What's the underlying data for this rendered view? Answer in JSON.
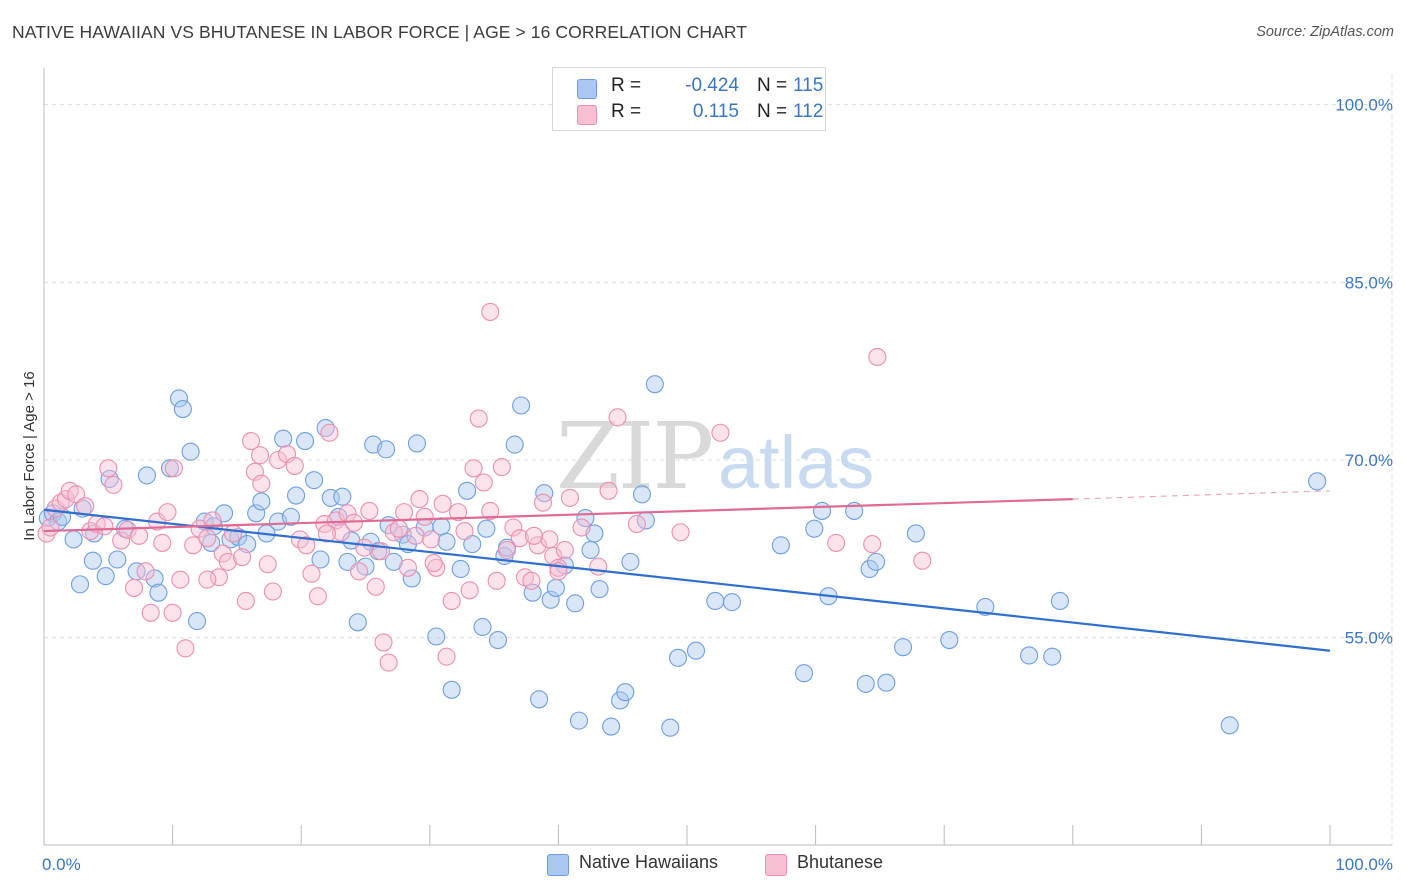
{
  "header": {
    "title": "NATIVE HAWAIIAN VS BHUTANESE IN LABOR FORCE | AGE > 16 CORRELATION CHART",
    "source": "Source: ZipAtlas.com"
  },
  "watermark": {
    "zip": "ZIP",
    "atlas": "atlas"
  },
  "legend": {
    "rows": [
      {
        "r_label": "R =",
        "r_value": "-0.424",
        "n_label": "N =",
        "n_value": "115"
      },
      {
        "r_label": "R =",
        "r_value": "0.115",
        "n_label": "N =",
        "n_value": "112"
      }
    ],
    "bottom": [
      "Native Hawaiians",
      "Bhutanese"
    ]
  },
  "chart_data": {
    "type": "scatter",
    "title": "NATIVE HAWAIIAN VS BHUTANESE IN LABOR FORCE | AGE > 16 CORRELATION CHART",
    "xlabel": "",
    "ylabel": "In Labor Force | Age > 16",
    "xlim": [
      0,
      100
    ],
    "ylim": [
      37.5,
      102.5
    ],
    "x_tick_labels": [
      "0.0%",
      "100.0%"
    ],
    "y_ticks": [
      55,
      70,
      85,
      100
    ],
    "y_tick_labels": [
      "55.0%",
      "70.0%",
      "85.0%",
      "100.0%"
    ],
    "grid": true,
    "legend_position": "top-center",
    "series": [
      {
        "name": "Native Hawaiians",
        "color": "#6f9fe0",
        "fill": "#a9c7f0",
        "trend": {
          "x": [
            0,
            100
          ],
          "y": [
            65.8,
            53.9
          ]
        },
        "trend_color": "#2f6fce",
        "points": [
          [
            0.3,
            65.1
          ],
          [
            0.7,
            65.5
          ],
          [
            1.1,
            64.8
          ],
          [
            1.4,
            65.2
          ],
          [
            2.3,
            63.3
          ],
          [
            2.8,
            59.5
          ],
          [
            3.8,
            61.5
          ],
          [
            3.9,
            63.8
          ],
          [
            4.8,
            60.2
          ],
          [
            5.1,
            68.4
          ],
          [
            5.7,
            61.6
          ],
          [
            6.3,
            64.2
          ],
          [
            7.2,
            60.6
          ],
          [
            8.0,
            68.7
          ],
          [
            8.6,
            60.0
          ],
          [
            8.9,
            58.8
          ],
          [
            9.8,
            69.3
          ],
          [
            10.5,
            75.2
          ],
          [
            10.8,
            74.3
          ],
          [
            11.4,
            70.7
          ],
          [
            11.9,
            56.4
          ],
          [
            12.5,
            64.8
          ],
          [
            13.0,
            63.0
          ],
          [
            13.2,
            64.4
          ],
          [
            14.0,
            65.5
          ],
          [
            14.5,
            63.3
          ],
          [
            15.1,
            63.5
          ],
          [
            15.8,
            62.9
          ],
          [
            16.5,
            65.5
          ],
          [
            16.9,
            66.5
          ],
          [
            17.3,
            63.8
          ],
          [
            18.2,
            64.8
          ],
          [
            18.6,
            71.8
          ],
          [
            19.2,
            65.2
          ],
          [
            19.6,
            67.0
          ],
          [
            20.3,
            71.6
          ],
          [
            21.0,
            68.3
          ],
          [
            21.5,
            61.6
          ],
          [
            21.9,
            72.7
          ],
          [
            22.3,
            66.8
          ],
          [
            22.9,
            65.2
          ],
          [
            23.2,
            66.9
          ],
          [
            23.6,
            61.4
          ],
          [
            23.9,
            63.2
          ],
          [
            24.4,
            56.3
          ],
          [
            25.0,
            61.0
          ],
          [
            25.4,
            63.1
          ],
          [
            25.6,
            71.3
          ],
          [
            26.0,
            62.3
          ],
          [
            26.6,
            70.9
          ],
          [
            27.2,
            61.4
          ],
          [
            27.9,
            63.7
          ],
          [
            28.3,
            62.9
          ],
          [
            28.6,
            60.0
          ],
          [
            29.0,
            71.4
          ],
          [
            29.6,
            64.3
          ],
          [
            30.5,
            55.1
          ],
          [
            30.9,
            64.4
          ],
          [
            31.3,
            63.1
          ],
          [
            31.7,
            50.6
          ],
          [
            32.4,
            60.8
          ],
          [
            32.9,
            67.4
          ],
          [
            33.3,
            62.9
          ],
          [
            34.1,
            55.9
          ],
          [
            34.4,
            64.2
          ],
          [
            35.3,
            54.8
          ],
          [
            35.8,
            61.9
          ],
          [
            36.6,
            71.3
          ],
          [
            37.1,
            74.6
          ],
          [
            38.0,
            58.8
          ],
          [
            38.5,
            49.8
          ],
          [
            38.9,
            67.2
          ],
          [
            39.4,
            58.2
          ],
          [
            39.8,
            59.2
          ],
          [
            40.5,
            61.1
          ],
          [
            41.3,
            57.9
          ],
          [
            41.6,
            48.0
          ],
          [
            42.1,
            65.1
          ],
          [
            42.5,
            62.4
          ],
          [
            42.8,
            63.8
          ],
          [
            43.2,
            59.1
          ],
          [
            44.1,
            47.5
          ],
          [
            44.8,
            49.7
          ],
          [
            45.2,
            50.4
          ],
          [
            45.6,
            61.4
          ],
          [
            46.5,
            67.1
          ],
          [
            46.8,
            64.9
          ],
          [
            47.5,
            76.4
          ],
          [
            48.7,
            47.4
          ],
          [
            49.3,
            53.3
          ],
          [
            50.7,
            53.9
          ],
          [
            52.2,
            58.1
          ],
          [
            53.5,
            58.0
          ],
          [
            57.3,
            62.8
          ],
          [
            59.1,
            52.0
          ],
          [
            59.9,
            64.2
          ],
          [
            60.5,
            65.7
          ],
          [
            61.0,
            58.5
          ],
          [
            63.0,
            65.7
          ],
          [
            63.9,
            51.1
          ],
          [
            64.2,
            60.8
          ],
          [
            64.7,
            61.4
          ],
          [
            65.5,
            51.2
          ],
          [
            66.8,
            54.2
          ],
          [
            67.8,
            63.8
          ],
          [
            70.4,
            54.8
          ],
          [
            73.2,
            57.6
          ],
          [
            76.6,
            53.5
          ],
          [
            78.4,
            53.4
          ],
          [
            79.0,
            58.1
          ],
          [
            92.2,
            47.6
          ],
          [
            99.0,
            68.2
          ],
          [
            3.0,
            65.9
          ],
          [
            26.8,
            64.5
          ],
          [
            36.0,
            62.6
          ]
        ]
      },
      {
        "name": "Bhutanese",
        "color": "#ec8fb0",
        "fill": "#f6bfd2",
        "trend": {
          "x": [
            0,
            80
          ],
          "y": [
            64.0,
            66.7
          ]
        },
        "trend_dashed": {
          "x": [
            80,
            100
          ],
          "y": [
            66.7,
            67.4
          ]
        },
        "trend_color": "#e06a94",
        "points": [
          [
            0.2,
            63.8
          ],
          [
            0.5,
            64.3
          ],
          [
            0.9,
            65.9
          ],
          [
            1.3,
            66.4
          ],
          [
            1.7,
            66.7
          ],
          [
            2.0,
            67.4
          ],
          [
            2.5,
            67.1
          ],
          [
            3.2,
            66.1
          ],
          [
            3.6,
            64.0
          ],
          [
            4.1,
            64.6
          ],
          [
            4.7,
            64.4
          ],
          [
            5.0,
            69.3
          ],
          [
            5.4,
            67.9
          ],
          [
            6.0,
            63.2
          ],
          [
            6.5,
            64.1
          ],
          [
            7.0,
            59.2
          ],
          [
            7.4,
            63.6
          ],
          [
            7.9,
            60.6
          ],
          [
            8.3,
            57.1
          ],
          [
            8.8,
            64.8
          ],
          [
            9.2,
            63.0
          ],
          [
            9.6,
            65.6
          ],
          [
            10.1,
            69.3
          ],
          [
            10.6,
            59.9
          ],
          [
            11.0,
            54.1
          ],
          [
            11.6,
            62.8
          ],
          [
            12.1,
            64.2
          ],
          [
            12.7,
            63.4
          ],
          [
            13.1,
            64.9
          ],
          [
            13.6,
            60.1
          ],
          [
            13.9,
            62.1
          ],
          [
            14.3,
            61.4
          ],
          [
            14.7,
            63.8
          ],
          [
            15.4,
            61.8
          ],
          [
            15.7,
            58.1
          ],
          [
            16.1,
            71.6
          ],
          [
            16.4,
            69.0
          ],
          [
            16.9,
            68.0
          ],
          [
            17.4,
            61.2
          ],
          [
            17.8,
            58.9
          ],
          [
            18.2,
            70.0
          ],
          [
            18.9,
            70.5
          ],
          [
            19.5,
            69.5
          ],
          [
            19.9,
            63.3
          ],
          [
            20.4,
            62.8
          ],
          [
            20.8,
            60.4
          ],
          [
            21.3,
            58.5
          ],
          [
            21.8,
            64.6
          ],
          [
            22.2,
            72.3
          ],
          [
            22.7,
            64.9
          ],
          [
            23.1,
            63.9
          ],
          [
            23.6,
            65.5
          ],
          [
            24.1,
            64.7
          ],
          [
            24.5,
            60.6
          ],
          [
            24.9,
            62.6
          ],
          [
            25.3,
            65.7
          ],
          [
            25.8,
            59.3
          ],
          [
            26.4,
            54.6
          ],
          [
            26.8,
            52.9
          ],
          [
            27.2,
            63.9
          ],
          [
            27.6,
            64.2
          ],
          [
            28.0,
            65.6
          ],
          [
            28.3,
            60.9
          ],
          [
            28.9,
            63.6
          ],
          [
            29.2,
            66.7
          ],
          [
            29.6,
            65.2
          ],
          [
            30.1,
            63.3
          ],
          [
            30.5,
            60.9
          ],
          [
            31.0,
            66.3
          ],
          [
            31.3,
            53.4
          ],
          [
            31.7,
            58.1
          ],
          [
            32.2,
            65.6
          ],
          [
            32.7,
            64.0
          ],
          [
            33.1,
            59.0
          ],
          [
            33.4,
            69.3
          ],
          [
            33.8,
            73.5
          ],
          [
            34.2,
            68.1
          ],
          [
            34.7,
            65.7
          ],
          [
            35.2,
            59.8
          ],
          [
            35.6,
            69.4
          ],
          [
            36.0,
            62.4
          ],
          [
            36.5,
            64.3
          ],
          [
            37.0,
            63.4
          ],
          [
            37.4,
            60.1
          ],
          [
            37.9,
            59.8
          ],
          [
            38.4,
            62.8
          ],
          [
            38.8,
            66.4
          ],
          [
            39.3,
            63.3
          ],
          [
            39.6,
            61.9
          ],
          [
            40.0,
            60.9
          ],
          [
            40.5,
            62.4
          ],
          [
            40.9,
            66.8
          ],
          [
            41.8,
            64.3
          ],
          [
            43.1,
            61.0
          ],
          [
            43.9,
            67.4
          ],
          [
            44.6,
            73.6
          ],
          [
            46.1,
            64.6
          ],
          [
            49.5,
            63.9
          ],
          [
            52.6,
            72.3
          ],
          [
            61.6,
            63.0
          ],
          [
            64.4,
            62.9
          ],
          [
            68.3,
            61.5
          ],
          [
            34.7,
            82.5
          ],
          [
            64.8,
            78.7
          ],
          [
            10.0,
            57.1
          ],
          [
            12.7,
            59.9
          ],
          [
            16.8,
            70.4
          ],
          [
            22.0,
            63.8
          ],
          [
            26.2,
            62.3
          ],
          [
            30.3,
            61.3
          ],
          [
            38.1,
            63.6
          ],
          [
            40.0,
            60.6
          ]
        ]
      }
    ]
  }
}
